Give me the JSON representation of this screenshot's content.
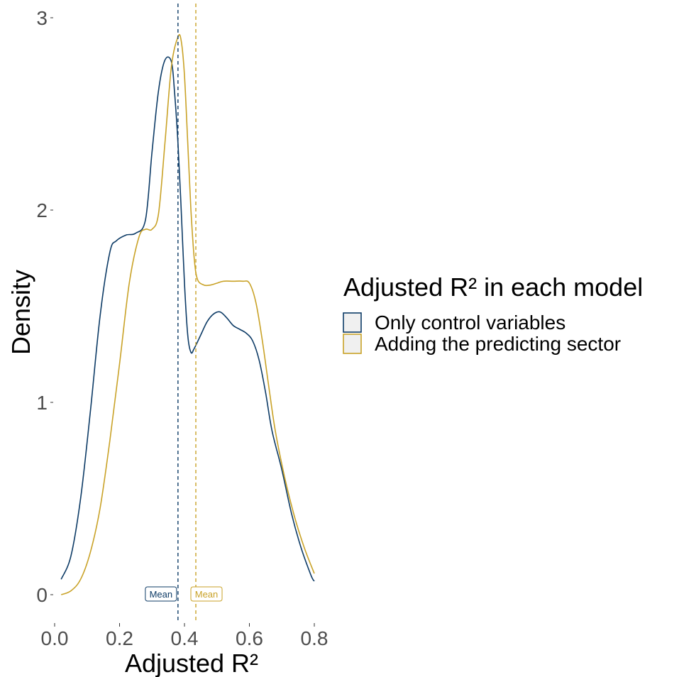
{
  "chart_data": {
    "type": "area",
    "xlabel": "Adjusted R²",
    "ylabel": "Density",
    "xlim": [
      0.0,
      0.8
    ],
    "ylim": [
      0,
      3
    ],
    "x_ticks": [
      0.0,
      0.2,
      0.4,
      0.6,
      0.8
    ],
    "x_tick_labels": [
      "0.0",
      "0.2",
      "0.4",
      "0.6",
      "0.8"
    ],
    "y_ticks": [
      0,
      1,
      2,
      3
    ],
    "y_tick_labels": [
      "0",
      "1",
      "2",
      "3"
    ],
    "grid": false,
    "legend": {
      "title": "Adjusted R² in each model",
      "placement": "right"
    },
    "series": [
      {
        "name": "Only control variables",
        "color": "#0d3b66",
        "mean": 0.38,
        "mean_label": "Mean",
        "x": [
          0.02,
          0.05,
          0.08,
          0.11,
          0.14,
          0.17,
          0.19,
          0.22,
          0.25,
          0.28,
          0.3,
          0.32,
          0.34,
          0.36,
          0.37,
          0.38,
          0.39,
          0.4,
          0.41,
          0.42,
          0.43,
          0.45,
          0.47,
          0.49,
          0.51,
          0.53,
          0.55,
          0.57,
          0.59,
          0.61,
          0.63,
          0.65,
          0.67,
          0.7,
          0.73,
          0.76,
          0.79,
          0.8
        ],
        "y": [
          0.08,
          0.2,
          0.5,
          0.95,
          1.45,
          1.78,
          1.84,
          1.87,
          1.88,
          1.95,
          2.3,
          2.62,
          2.78,
          2.77,
          2.6,
          2.35,
          2.0,
          1.62,
          1.35,
          1.26,
          1.28,
          1.35,
          1.42,
          1.46,
          1.47,
          1.44,
          1.4,
          1.38,
          1.36,
          1.32,
          1.22,
          1.05,
          0.85,
          0.65,
          0.42,
          0.24,
          0.1,
          0.07
        ]
      },
      {
        "name": "Adding the predicting sector",
        "color": "#c9a227",
        "mean": 0.435,
        "mean_label": "Mean",
        "x": [
          0.02,
          0.05,
          0.08,
          0.11,
          0.14,
          0.17,
          0.2,
          0.23,
          0.26,
          0.28,
          0.3,
          0.32,
          0.34,
          0.36,
          0.38,
          0.39,
          0.4,
          0.41,
          0.42,
          0.43,
          0.44,
          0.46,
          0.48,
          0.5,
          0.52,
          0.55,
          0.58,
          0.6,
          0.62,
          0.64,
          0.66,
          0.68,
          0.71,
          0.74,
          0.77,
          0.8
        ],
        "y": [
          0.0,
          0.02,
          0.08,
          0.22,
          0.45,
          0.8,
          1.2,
          1.62,
          1.86,
          1.9,
          1.9,
          1.98,
          2.35,
          2.75,
          2.9,
          2.88,
          2.7,
          2.35,
          2.0,
          1.75,
          1.64,
          1.61,
          1.61,
          1.62,
          1.63,
          1.63,
          1.63,
          1.62,
          1.52,
          1.32,
          1.08,
          0.85,
          0.6,
          0.4,
          0.24,
          0.11
        ]
      }
    ]
  }
}
